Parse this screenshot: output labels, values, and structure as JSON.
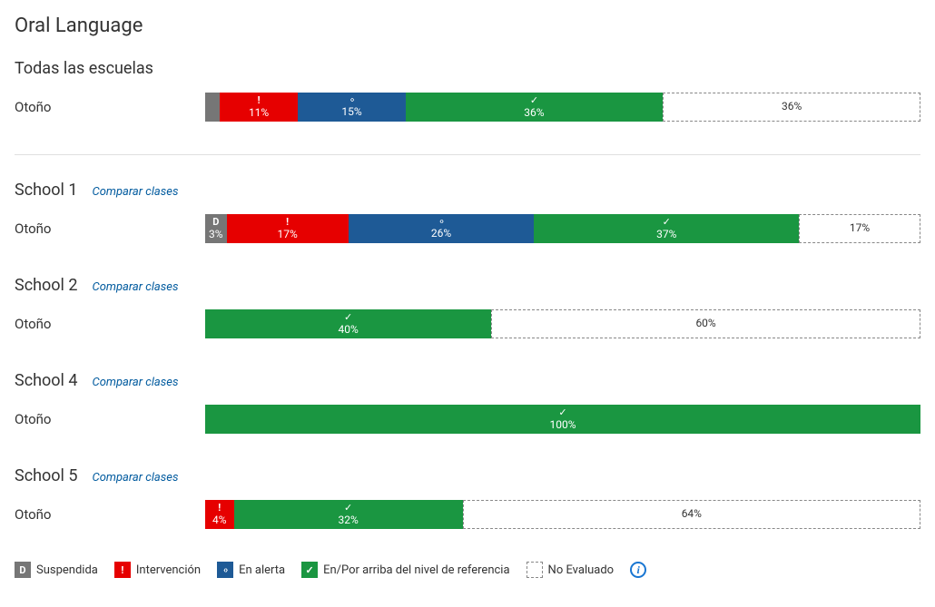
{
  "title": "Oral Language",
  "compare_label": "Comparar clases",
  "row_term_label": "Otoño",
  "colors": {
    "suspended": "#767676",
    "intervention": "#e60000",
    "alert": "#1e5a96",
    "onlevel": "#1a9641",
    "noeval_bg": "#ffffff",
    "noeval_border": "#888888",
    "text_dark": "#333333"
  },
  "legend": {
    "suspended": "Suspendida",
    "intervention": "Intervención",
    "alert": "En alerta",
    "onlevel": "En/Por arriba del nivel de referencia",
    "noeval": "No Evaluado"
  },
  "groups": [
    {
      "name": "Todas las escuelas",
      "show_compare": false,
      "divider_after": true,
      "segments": [
        {
          "type": "suspended",
          "value": 2,
          "label": null,
          "show_icon": false
        },
        {
          "type": "intervention",
          "value": 11,
          "label": "11%",
          "show_icon": true
        },
        {
          "type": "alert",
          "value": 15,
          "label": "15%",
          "show_icon": true
        },
        {
          "type": "onlevel",
          "value": 36,
          "label": "36%",
          "show_icon": true
        },
        {
          "type": "noeval",
          "value": 36,
          "label": "36%",
          "show_icon": false
        }
      ]
    },
    {
      "name": "School 1",
      "show_compare": true,
      "divider_after": false,
      "segments": [
        {
          "type": "suspended",
          "value": 3,
          "label": "3%",
          "show_icon": true
        },
        {
          "type": "intervention",
          "value": 17,
          "label": "17%",
          "show_icon": true
        },
        {
          "type": "alert",
          "value": 26,
          "label": "26%",
          "show_icon": true
        },
        {
          "type": "onlevel",
          "value": 37,
          "label": "37%",
          "show_icon": true
        },
        {
          "type": "noeval",
          "value": 17,
          "label": "17%",
          "show_icon": false
        }
      ]
    },
    {
      "name": "School 2",
      "show_compare": true,
      "divider_after": false,
      "segments": [
        {
          "type": "onlevel",
          "value": 40,
          "label": "40%",
          "show_icon": true
        },
        {
          "type": "noeval",
          "value": 60,
          "label": "60%",
          "show_icon": false
        }
      ]
    },
    {
      "name": "School 4",
      "show_compare": true,
      "divider_after": false,
      "segments": [
        {
          "type": "onlevel",
          "value": 100,
          "label": "100%",
          "show_icon": true
        }
      ]
    },
    {
      "name": "School 5",
      "show_compare": true,
      "divider_after": false,
      "segments": [
        {
          "type": "intervention",
          "value": 4,
          "label": "4%",
          "show_icon": true
        },
        {
          "type": "onlevel",
          "value": 32,
          "label": "32%",
          "show_icon": true
        },
        {
          "type": "noeval",
          "value": 64,
          "label": "64%",
          "show_icon": false
        }
      ]
    }
  ]
}
